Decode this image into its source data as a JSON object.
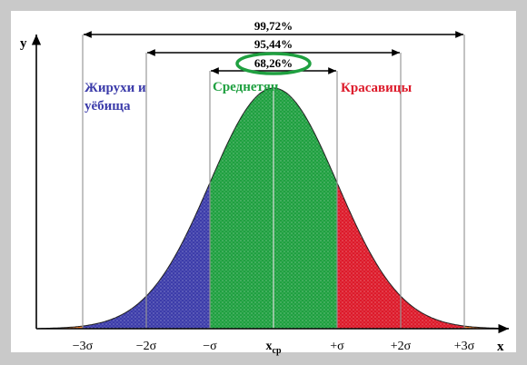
{
  "axes": {
    "y_label": "y",
    "x_label": "x"
  },
  "intervals": [
    {
      "label": "99,72%",
      "from": -3,
      "to": 3
    },
    {
      "label": "95,44%",
      "from": -2,
      "to": 2
    },
    {
      "label": "68,26%",
      "from": -1,
      "to": 1,
      "highlighted": true
    }
  ],
  "regions": {
    "left": {
      "label_line1": "Жирухи и",
      "label_line2": "уёбища",
      "color": "#3c3caa"
    },
    "middle": {
      "label": "Среднетян",
      "color": "#1fa040"
    },
    "right": {
      "label": "Красавицы",
      "color": "#dd1a2a"
    }
  },
  "ticks": [
    {
      "label": "−3σ"
    },
    {
      "label": "−2σ"
    },
    {
      "label": "−σ"
    },
    {
      "label": "x",
      "sub": "ср"
    },
    {
      "label": "+σ"
    },
    {
      "label": "+2σ"
    },
    {
      "label": "+3σ"
    }
  ],
  "colors": {
    "background": "#c9c9c9",
    "plot_bg": "#ffffff",
    "tail": "#e8731f",
    "highlight_ring": "#1fa040",
    "line": "#000000"
  }
}
